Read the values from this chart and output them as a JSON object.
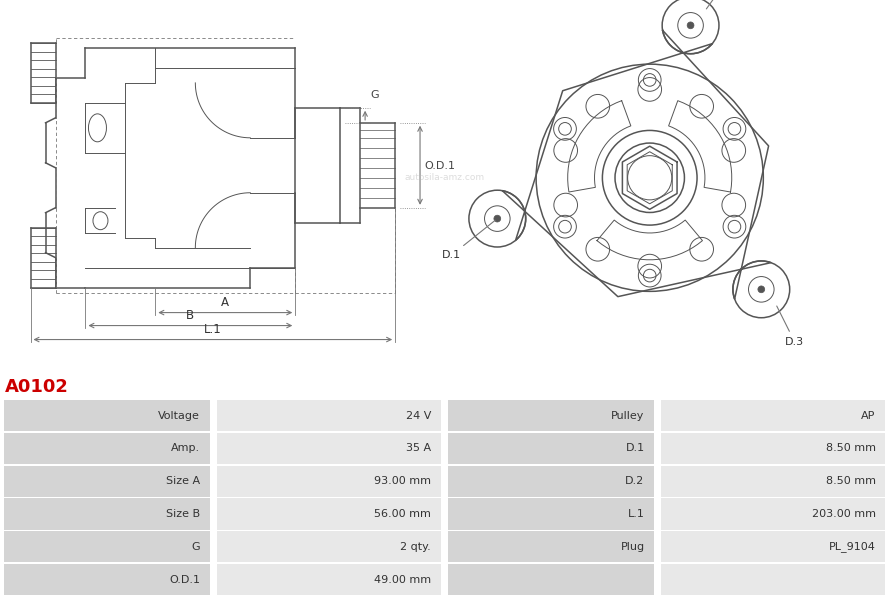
{
  "title": "A0102",
  "title_color": "#cc0000",
  "bg_color": "#ffffff",
  "table_rows": [
    [
      "Voltage",
      "24 V",
      "Pulley",
      "AP"
    ],
    [
      "Amp.",
      "35 A",
      "D.1",
      "8.50 mm"
    ],
    [
      "Size A",
      "93.00 mm",
      "D.2",
      "8.50 mm"
    ],
    [
      "Size B",
      "56.00 mm",
      "L.1",
      "203.00 mm"
    ],
    [
      "G",
      "2 qty.",
      "Plug",
      "PL_9104"
    ],
    [
      "O.D.1",
      "49.00 mm",
      "",
      ""
    ]
  ],
  "label_bg": "#d4d4d4",
  "value_bg": "#e8e8e8",
  "cell_text_color": "#333333",
  "line_color": "#555555",
  "dim_color": "#777777",
  "watermark": "autosila-amz.com"
}
